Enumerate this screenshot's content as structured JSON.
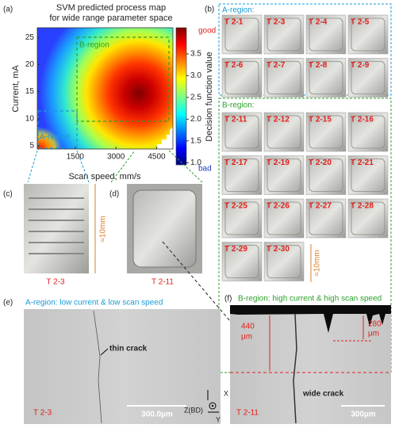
{
  "panel_a": {
    "label": "(a)",
    "title": "SVM predicted process map",
    "subtitle": "for wide range parameter space",
    "x_label": "Scan speed, mm/s",
    "y_label": "Current, mA",
    "xlim": [
      100,
      5100
    ],
    "xticks": [
      1500,
      3000,
      4500
    ],
    "ylim": [
      4.4,
      26.8
    ],
    "yticks": [
      5,
      10,
      15,
      20,
      25
    ],
    "colorbar": {
      "label": "Decision function value",
      "top": "good",
      "bottom": "bad",
      "lim": [
        0.95,
        4.1
      ],
      "ticks": [
        {
          "value": 1,
          "label": "1.0"
        },
        1.5,
        {
          "value": 2,
          "label": "2.0"
        },
        2.5,
        {
          "value": 3,
          "label": "3.0"
        },
        3.5
      ]
    },
    "regions": [
      "A-region",
      "B-region"
    ]
  },
  "panel_b": {
    "label": "(b)",
    "a_region": {
      "title": "A-region:",
      "samples": [
        "T 2-1",
        "T 2-3",
        "T 2-4",
        "T 2-5",
        "T 2-6",
        "T 2-7",
        "T 2-8",
        "T 2-9"
      ]
    },
    "b_region": {
      "title": "B-region:",
      "samples": [
        "T 2-11",
        "T 2-12",
        "T 2-15",
        "T 2-16",
        "T 2-17",
        "T 2-19",
        "T 2-20",
        "T 2-21",
        "T 2-25",
        "T 2-26",
        "T 2-27",
        "T 2-28",
        "T 2-29",
        "T 2-30"
      ]
    },
    "scale": "≈10mm"
  },
  "panel_c": {
    "label": "(c)",
    "sample": "T 2-3",
    "scale": "≈10mm"
  },
  "panel_d": {
    "label": "(d)",
    "sample": "T 2-11"
  },
  "panel_e": {
    "label": "(e)",
    "caption": "A-region:  low current & low scan speed",
    "annotation": "thin crack",
    "sample": "T 2-3",
    "scale": "300.0µm"
  },
  "panel_f": {
    "label": "(f)",
    "caption": "B-region:  high current & high scan speed",
    "depth_1": [
      "440",
      "µm"
    ],
    "depth_2": [
      "280",
      "µm"
    ],
    "annotation": "wide crack",
    "sample": "T 2-11",
    "scale": "300µm"
  },
  "axes_icon": {
    "z": "Z(BD)",
    "x": "X",
    "y": "Y"
  }
}
